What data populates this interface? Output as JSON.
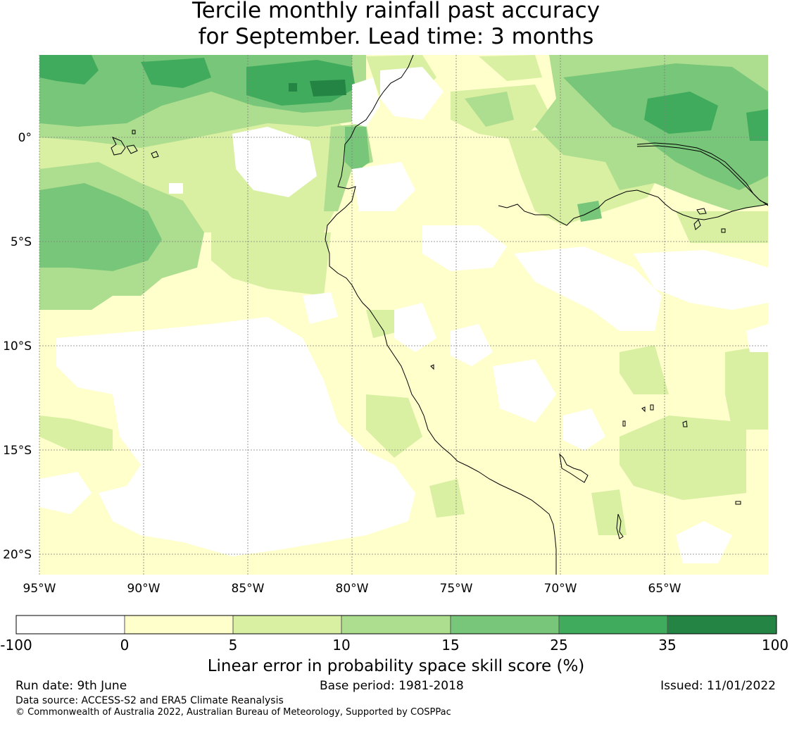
{
  "title": {
    "line1": "Tercile monthly rainfall past accuracy",
    "line2": "for September. Lead time: 3 months"
  },
  "map": {
    "lon_labels": [
      "95°W",
      "90°W",
      "85°W",
      "80°W",
      "75°W",
      "70°W",
      "65°W"
    ],
    "lat_labels": [
      "0°",
      "5°S",
      "10°S",
      "15°S",
      "20°S"
    ],
    "gridline_color": "#7f7f7f",
    "coastline_color": "#000000"
  },
  "colorbar": {
    "ticks": [
      "-100",
      "0",
      "5",
      "10",
      "15",
      "25",
      "35",
      "100"
    ],
    "colors": [
      "#ffffff",
      "#ffffcc",
      "#d9f0a3",
      "#addd8e",
      "#78c679",
      "#41ab5d",
      "#238443"
    ],
    "label": "Linear error in probability space skill score (%)"
  },
  "footer": {
    "run_date": "Run date: 9th June",
    "base_period": "Base period: 1981-2018",
    "issued": "Issued: 11/01/2022",
    "data_source": "Data source: ACCESS-S2 and ERA5 Climate Reanalysis",
    "copyright": "© Commonwealth of Australia 2022, Australian Bureau of Meteorology, Supported by COSPPac"
  }
}
